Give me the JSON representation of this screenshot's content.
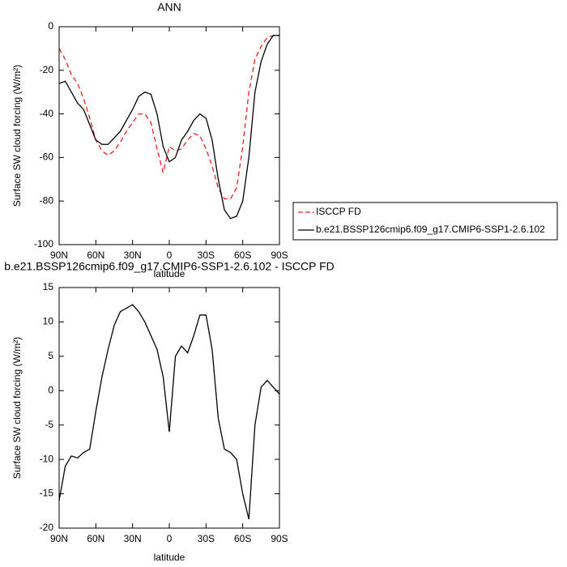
{
  "chart_data": [
    {
      "type": "line",
      "title": "ANN",
      "xlabel": "latitude",
      "ylabel": "Surface SW cloud forcing (W/m²)",
      "x": [
        90,
        85,
        80,
        75,
        70,
        65,
        60,
        55,
        50,
        45,
        40,
        35,
        30,
        25,
        20,
        15,
        10,
        5,
        0,
        -5,
        -10,
        -15,
        -20,
        -25,
        -30,
        -35,
        -40,
        -45,
        -50,
        -55,
        -60,
        -65,
        -70,
        -75,
        -80,
        -85,
        -90
      ],
      "series": [
        {
          "name": "ISCCP FD",
          "color": "#e8201c",
          "linestyle": "dashed",
          "values": [
            -10,
            -15,
            -22,
            -26,
            -33,
            -42,
            -52,
            -57,
            -59,
            -57,
            -53,
            -48,
            -44,
            -40,
            -40,
            -44,
            -56,
            -67,
            -55,
            -57,
            -56,
            -52,
            -49,
            -50,
            -56,
            -64,
            -74,
            -79,
            -79,
            -74,
            -55,
            -30,
            -15,
            -9,
            -5,
            -4,
            -4
          ]
        },
        {
          "name": "b.e21.BSSP126cmip6.f09_g17.CMIP6-SSP1-2.6.102",
          "color": "#000000",
          "linestyle": "solid",
          "values": [
            -26,
            -25,
            -30,
            -35,
            -38,
            -45,
            -52,
            -54,
            -54,
            -51,
            -48,
            -43,
            -38,
            -32,
            -30,
            -31,
            -40,
            -55,
            -62,
            -60,
            -52,
            -48,
            -43,
            -40,
            -42,
            -52,
            -70,
            -84,
            -88,
            -87,
            -80,
            -60,
            -30,
            -16,
            -8,
            -4,
            -4
          ]
        }
      ],
      "xlim": [
        90,
        -90
      ],
      "xticks": [
        {
          "value": 90,
          "label": "90N"
        },
        {
          "value": 60,
          "label": "60N"
        },
        {
          "value": 30,
          "label": "30N"
        },
        0,
        {
          "value": -30,
          "label": "30S"
        },
        {
          "value": -60,
          "label": "60S"
        },
        {
          "value": -90,
          "label": "90S"
        }
      ],
      "ylim": [
        -100,
        0
      ],
      "yticks": [
        0,
        -20,
        -40,
        -60,
        -80,
        -100
      ],
      "legend": "right"
    },
    {
      "type": "line",
      "title": "b.e21.BSSP126cmip6.f09_g17.CMIP6-SSP1-2.6.102 - ISCCP FD",
      "xlabel": "latitude",
      "ylabel": "Surface SW cloud forcing (W/m²)",
      "x": [
        90,
        85,
        80,
        75,
        70,
        65,
        60,
        55,
        50,
        45,
        40,
        35,
        30,
        25,
        20,
        15,
        10,
        5,
        0,
        -5,
        -10,
        -15,
        -20,
        -25,
        -30,
        -35,
        -40,
        -45,
        -50,
        -55,
        -60,
        -65,
        -70,
        -75,
        -80,
        -85,
        -90
      ],
      "series": [
        {
          "color": "#000000",
          "linestyle": "solid",
          "values": [
            -16,
            -11,
            -9.5,
            -9.8,
            -9,
            -8.5,
            -3,
            2,
            6,
            9.5,
            11.5,
            12,
            12.5,
            11.5,
            10,
            8,
            6,
            2,
            -6,
            5,
            6.5,
            5.5,
            8,
            11,
            11,
            6,
            -4,
            -8.5,
            -9,
            -10,
            -15,
            -18.7,
            -5,
            0.5,
            1.5,
            0.5,
            -0.5
          ]
        }
      ],
      "xlim": [
        90,
        -90
      ],
      "xticks": [
        {
          "value": 90,
          "label": "90N"
        },
        {
          "value": 60,
          "label": "60N"
        },
        {
          "value": 30,
          "label": "30N"
        },
        0,
        {
          "value": -30,
          "label": "30S"
        },
        {
          "value": -60,
          "label": "60S"
        },
        {
          "value": -90,
          "label": "90S"
        }
      ],
      "ylim": [
        -20,
        15
      ],
      "yticks": [
        15,
        10,
        5,
        0,
        -5,
        -10,
        -15,
        -20
      ]
    }
  ]
}
